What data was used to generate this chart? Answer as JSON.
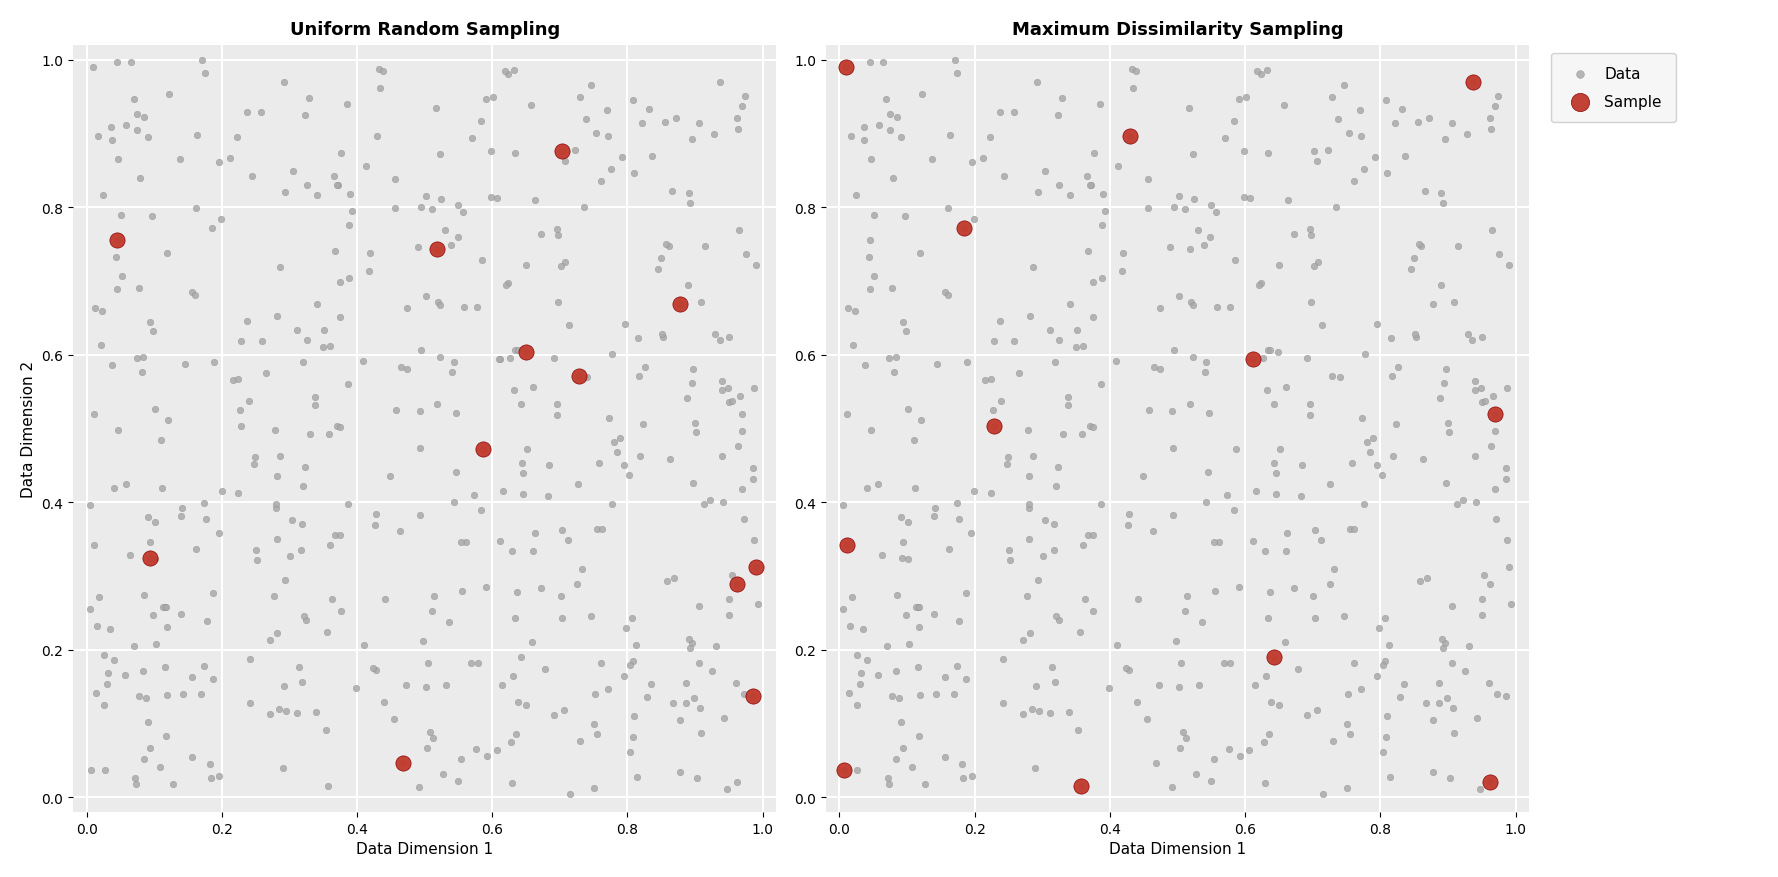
{
  "title_left": "Uniform Random Sampling",
  "title_right": "Maximum Dissimilarity Sampling",
  "xlabel": "Data Dimension 1",
  "ylabel": "Data Dimension 2",
  "n_background": 500,
  "n_samples": 12,
  "background_color": "#ebebeb",
  "data_color": "#aaaaaa",
  "data_edge_color": "#888888",
  "sample_color": "#c0392b",
  "sample_edge_color": "#8b0000",
  "data_alpha": 0.85,
  "data_size": 22,
  "sample_size": 120,
  "grid_color": "white",
  "grid_linewidth": 1.5,
  "legend_labels": [
    "Data",
    "Sample"
  ],
  "seed_bg": 42,
  "seed_rs": 17,
  "seed_mds": 5,
  "xlim": [
    -0.02,
    1.02
  ],
  "ylim": [
    -0.02,
    1.02
  ],
  "xticks": [
    0.0,
    0.2,
    0.4,
    0.6,
    0.8,
    1.0
  ],
  "yticks": [
    0.0,
    0.2,
    0.4,
    0.6,
    0.8,
    1.0
  ],
  "figsize": [
    17.78,
    8.78
  ],
  "dpi": 100,
  "title_fontsize": 13,
  "label_fontsize": 11,
  "tick_fontsize": 10,
  "legend_fontsize": 11
}
